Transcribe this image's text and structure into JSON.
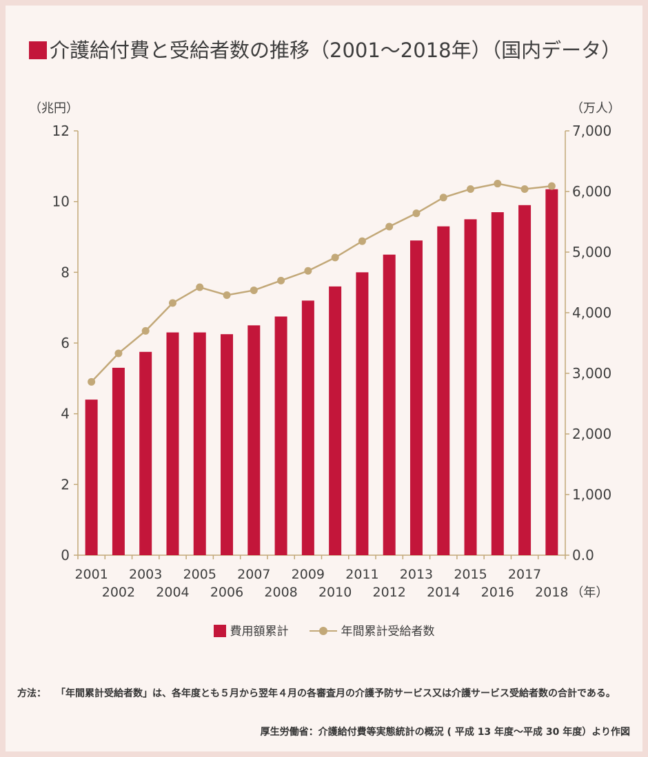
{
  "title": "介護給付費と受給者数の推移（2001〜2018年）（国内データ）",
  "chart_data": {
    "type": "bar+line",
    "title": "介護給付費と受給者数の推移（2001〜2018年）（国内データ）",
    "y_left_unit": "（兆円）",
    "y_right_unit": "（万人）",
    "x_unit": "（年）",
    "ylim_left": [
      0,
      12
    ],
    "ylim_right": [
      0,
      7000
    ],
    "y_left_ticks": [
      "0",
      "2",
      "4",
      "6",
      "8",
      "10",
      "12"
    ],
    "y_right_ticks": [
      "0.0",
      "1,000",
      "2,000",
      "3,000",
      "4,000",
      "5,000",
      "6,000",
      "7,000"
    ],
    "categories": [
      "2001",
      "2002",
      "2003",
      "2004",
      "2005",
      "2006",
      "2007",
      "2008",
      "2009",
      "2010",
      "2011",
      "2012",
      "2013",
      "2014",
      "2015",
      "2016",
      "2017",
      "2018"
    ],
    "series": [
      {
        "name": "費用額累計",
        "type": "bar",
        "axis": "left",
        "color": "#c3163a",
        "values": [
          4.4,
          5.3,
          5.75,
          6.3,
          6.3,
          6.25,
          6.5,
          6.75,
          7.2,
          7.6,
          8.0,
          8.5,
          8.9,
          9.3,
          9.5,
          9.7,
          9.9,
          10.35
        ]
      },
      {
        "name": "年間累計受給者数",
        "type": "line",
        "axis": "right",
        "color": "#c2a878",
        "values": [
          2860,
          3330,
          3700,
          4160,
          4420,
          4290,
          4370,
          4530,
          4690,
          4910,
          5180,
          5420,
          5640,
          5900,
          6040,
          6130,
          6040,
          6090
        ]
      }
    ]
  },
  "legend": {
    "bar_label": "費用額累計",
    "line_label": "年間累計受給者数"
  },
  "note": {
    "label": "方法：",
    "text": "「年間累計受給者数」は、各年度とも５月から翌年４月の各審査月の介護予防サービス又は介護サービス受給者数の合計である。"
  },
  "source": "厚生労働省：介護給付費等実態統計の概況 ( 平成 13 年度〜平成 30 年度）より作図"
}
